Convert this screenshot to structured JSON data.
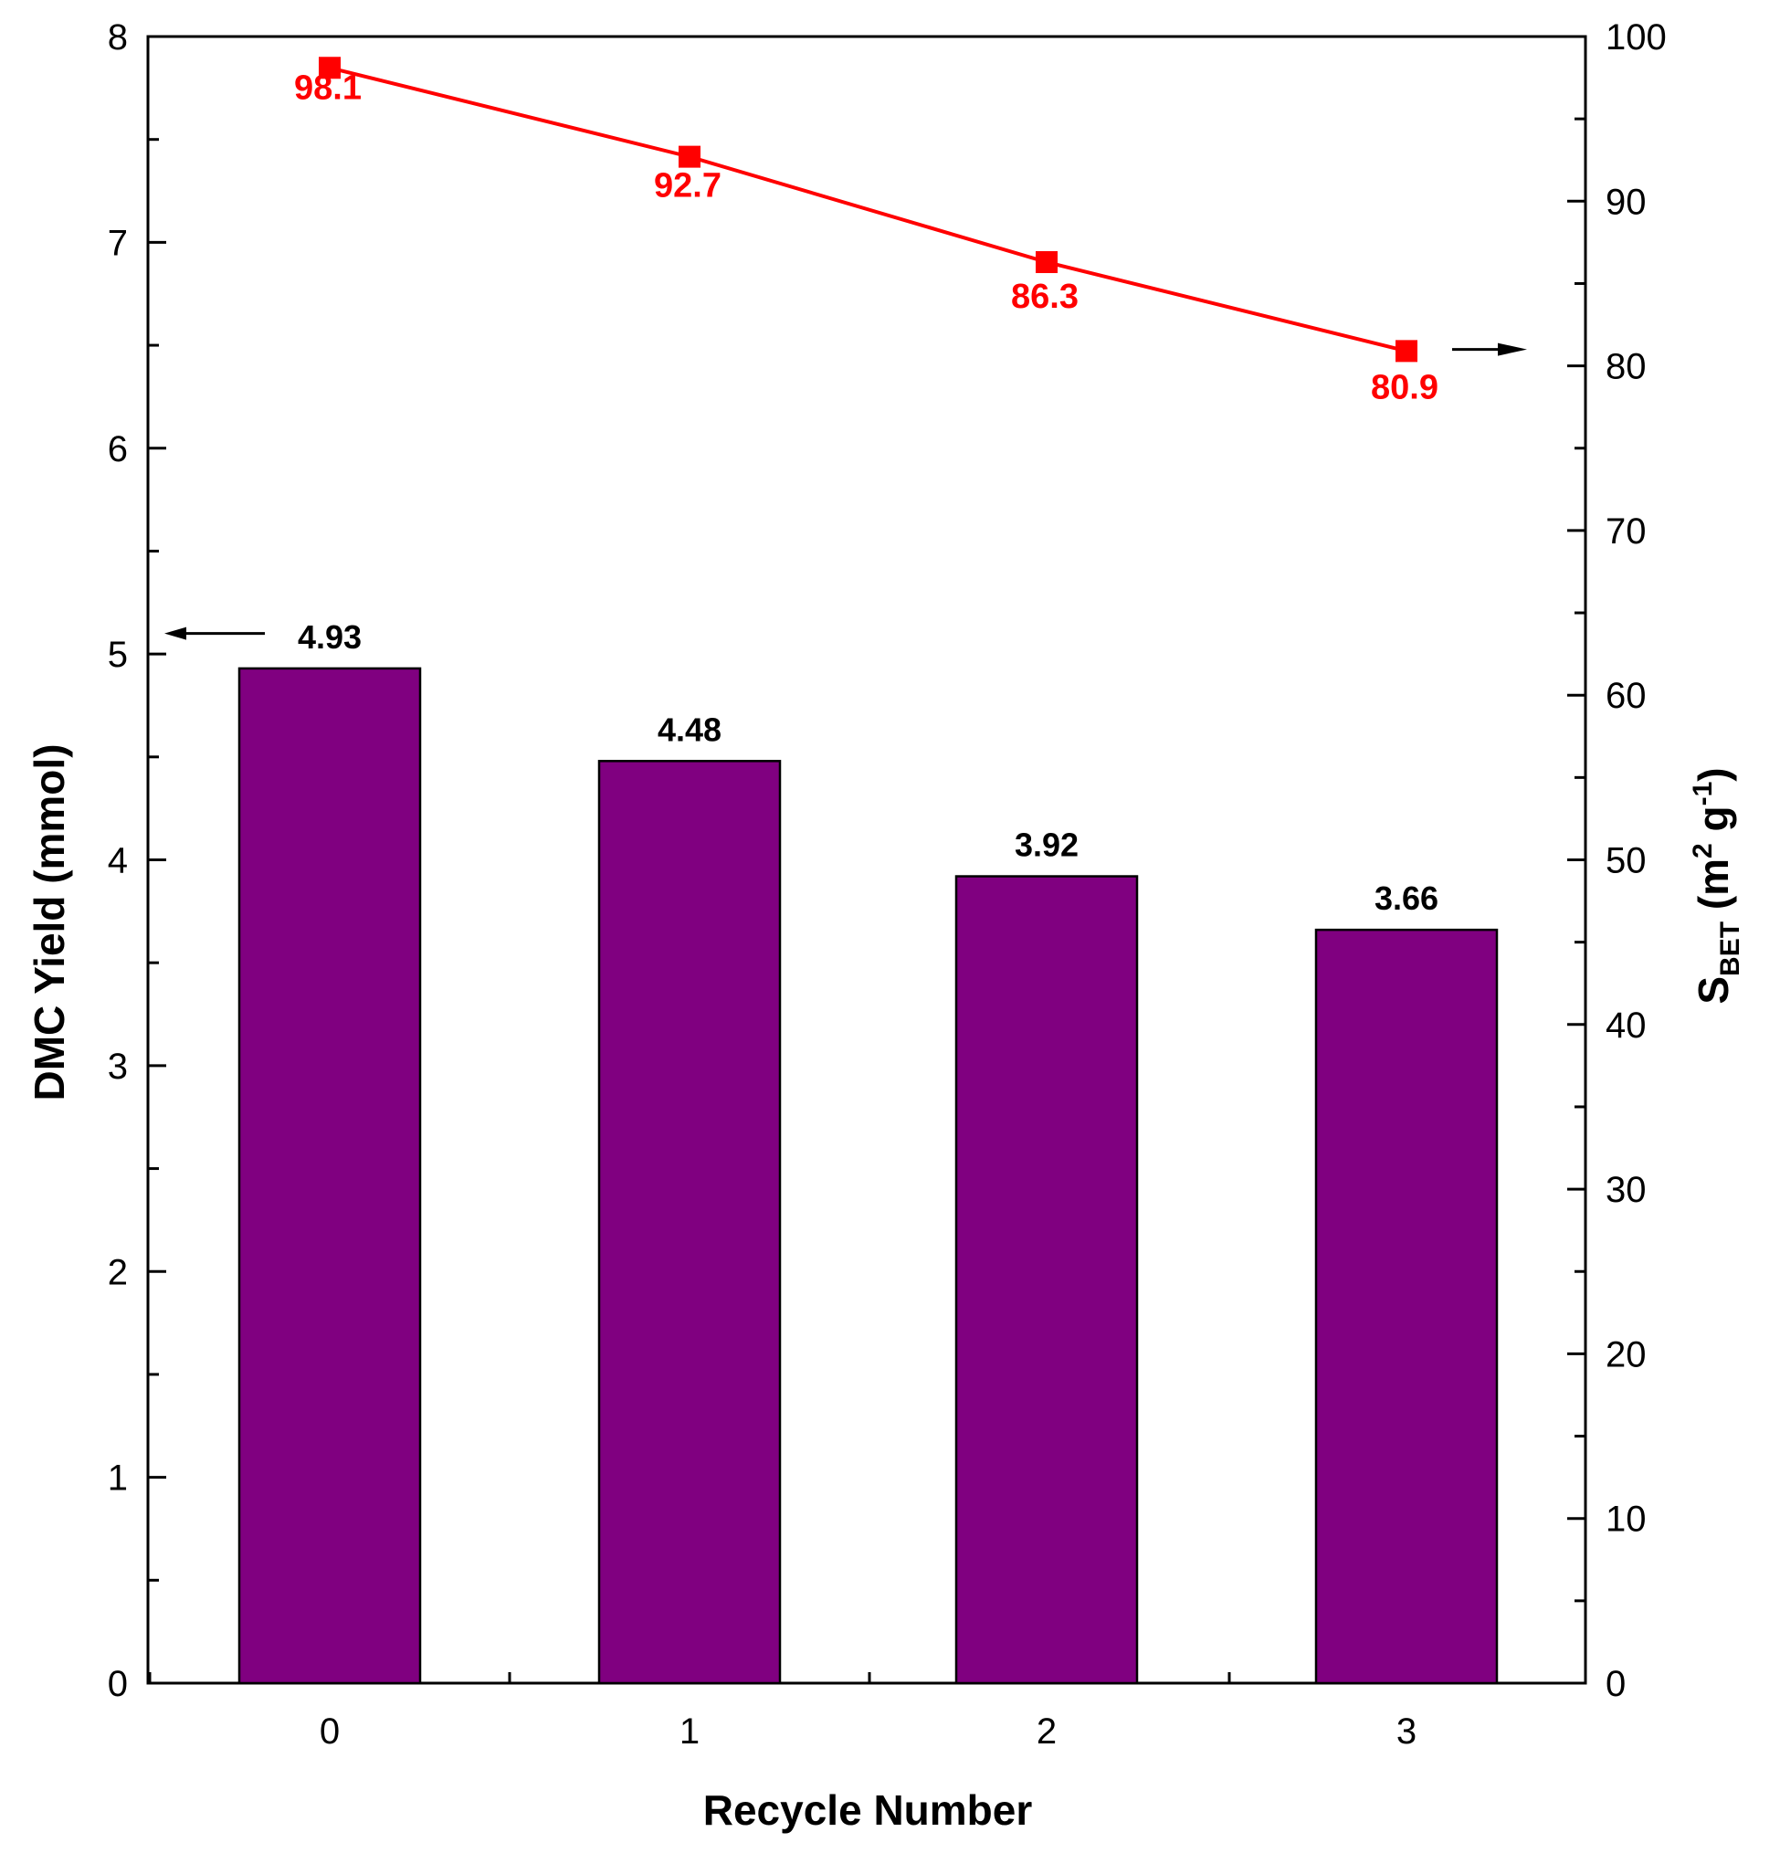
{
  "chart_data": {
    "type": "bar",
    "title": "",
    "xlabel": "Recycle Number",
    "categories": [
      "0",
      "1",
      "2",
      "3"
    ],
    "y_left": {
      "label": "DMC Yield (mmol)",
      "range": [
        0,
        8
      ],
      "ticks": [
        "0",
        "1",
        "2",
        "3",
        "4",
        "5",
        "6",
        "7",
        "8"
      ]
    },
    "y_right": {
      "label_main": "S",
      "label_sub": "BET",
      "label_unit_open": " (m",
      "label_unit_sup1": "2",
      "label_unit_mid": " g",
      "label_unit_sup2": "-1",
      "label_unit_close": ")",
      "range": [
        0,
        100
      ],
      "ticks": [
        "0",
        "10",
        "20",
        "30",
        "40",
        "50",
        "60",
        "70",
        "80",
        "90",
        "100"
      ]
    },
    "series": [
      {
        "kind": "bar",
        "axis": "left",
        "values": [
          4.93,
          4.48,
          3.92,
          3.66
        ],
        "labels": [
          "4.93",
          "4.48",
          "3.92",
          "3.66"
        ],
        "color": "#800080"
      },
      {
        "kind": "line",
        "axis": "right",
        "marker": "square",
        "values": [
          98.1,
          92.7,
          86.3,
          80.9
        ],
        "labels": [
          "98.1",
          "92.7",
          "86.3",
          "80.9"
        ],
        "color": "#ff0000"
      }
    ],
    "grid": false,
    "legend": "none",
    "axis_indicators": [
      "left-arrow near bar series",
      "right-arrow near line series"
    ]
  }
}
